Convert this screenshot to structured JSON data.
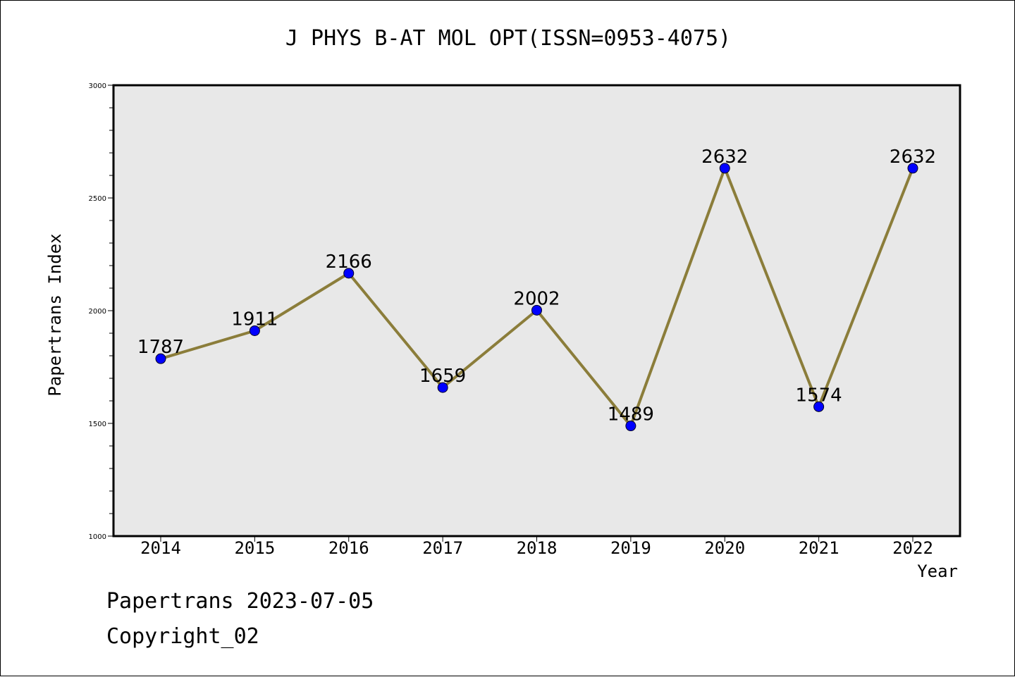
{
  "chart_data": {
    "type": "line",
    "title": "J PHYS B-AT MOL OPT(ISSN=0953-4075)",
    "xlabel": "Year",
    "ylabel": "Papertrans Index",
    "categories": [
      "2014",
      "2015",
      "2016",
      "2017",
      "2018",
      "2019",
      "2020",
      "2021",
      "2022"
    ],
    "series": [
      {
        "values": [
          1787,
          1911,
          2166,
          1659,
          2002,
          1489,
          2632,
          1574,
          2632
        ],
        "line_color": "#8b7d3a",
        "marker_color": "#0000ff"
      }
    ],
    "data_labels": [
      "1787",
      "1911",
      "2166",
      "1659",
      "2002",
      "1489",
      "2632",
      "1574",
      "2632"
    ],
    "ylim": [
      1000,
      3000
    ],
    "yticks": [
      "1000",
      "1500",
      "2000",
      "2500",
      "3000"
    ],
    "grid": false,
    "legend": "none",
    "plot_background": "#e8e8e8"
  },
  "footer": {
    "line1": "Papertrans 2023-07-05",
    "line2": "Copyright_02"
  }
}
